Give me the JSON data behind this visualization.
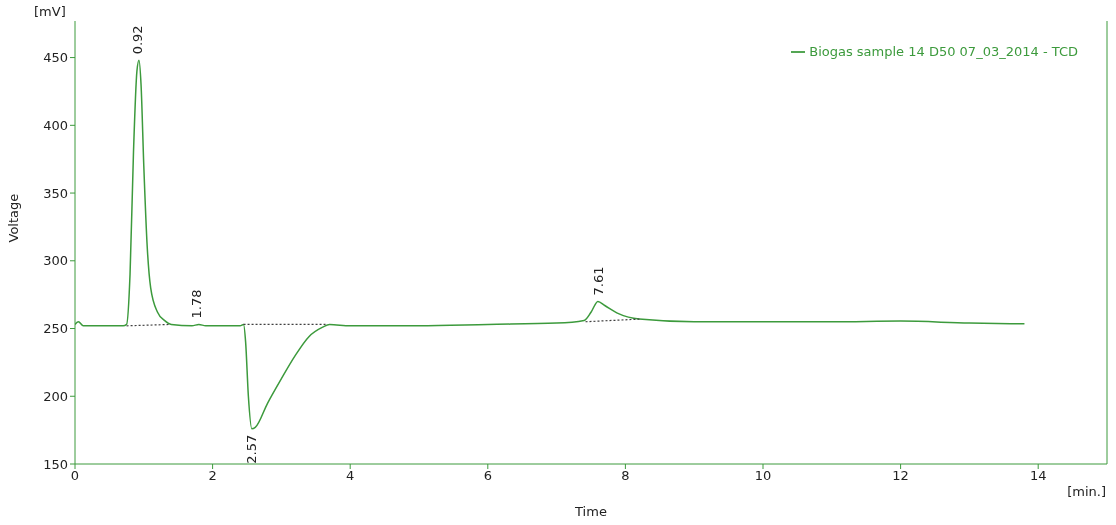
{
  "chart_data": {
    "type": "line",
    "xlabel": "Time",
    "ylabel": "Voltage",
    "xlim": [
      0,
      15
    ],
    "ylim": [
      150,
      477
    ],
    "xticks": [
      0,
      2,
      4,
      6,
      8,
      10,
      12,
      14
    ],
    "yticks": [
      150,
      200,
      250,
      300,
      350,
      400,
      450
    ],
    "grid": false,
    "legend": "top right",
    "marker": "none",
    "series": [
      {
        "name": "Biogas sample 14 D50 07_03_2014 - TCD",
        "color": "#3c9a3c",
        "line_style": "solid",
        "x": [
          0,
          0.05,
          0.12,
          0.7,
          0.75,
          0.8,
          0.85,
          0.9,
          0.93,
          0.96,
          1.0,
          1.05,
          1.1,
          1.2,
          1.3,
          1.4,
          1.7,
          1.8,
          1.9,
          2.4,
          2.45,
          2.48,
          2.52,
          2.57,
          2.62,
          2.8,
          3.0,
          3.2,
          3.4,
          3.6,
          3.7,
          4,
          5,
          6,
          7,
          7.4,
          7.5,
          7.6,
          7.7,
          7.9,
          8.2,
          9,
          10,
          11,
          12,
          13,
          13.8
        ],
        "values": [
          253,
          255,
          252,
          252,
          253,
          290,
          380,
          440,
          448,
          430,
          370,
          310,
          280,
          262,
          256,
          253,
          252,
          253,
          252,
          252,
          253,
          240,
          200,
          176,
          177,
          195,
          213,
          230,
          244,
          251,
          253,
          252,
          252,
          253,
          254,
          256,
          262,
          270,
          267,
          261,
          257,
          255,
          255,
          255,
          255.5,
          254,
          253.5
        ]
      },
      {
        "type": "line",
        "color": "#404040",
        "line_style": "dotted",
        "x": [
          0.75,
          1.38
        ],
        "values": [
          252,
          253
        ]
      },
      {
        "type": "line",
        "color": "#404040",
        "line_style": "dotted",
        "x": [
          2.45,
          3.65
        ],
        "values": [
          253,
          253
        ]
      },
      {
        "type": "line",
        "color": "#404040",
        "line_style": "dotted",
        "x": [
          7.42,
          8.22
        ],
        "values": [
          255,
          257
        ]
      }
    ],
    "annotations": [
      {
        "text": "0.92",
        "x": 0.92,
        "y": 448
      },
      {
        "text": "1.78",
        "x": 1.78,
        "y": 253
      },
      {
        "text": "2.57",
        "x": 2.57,
        "y": 176
      },
      {
        "text": "7.61",
        "x": 7.61,
        "y": 270
      },
      "[mV]",
      "[min.]"
    ]
  }
}
